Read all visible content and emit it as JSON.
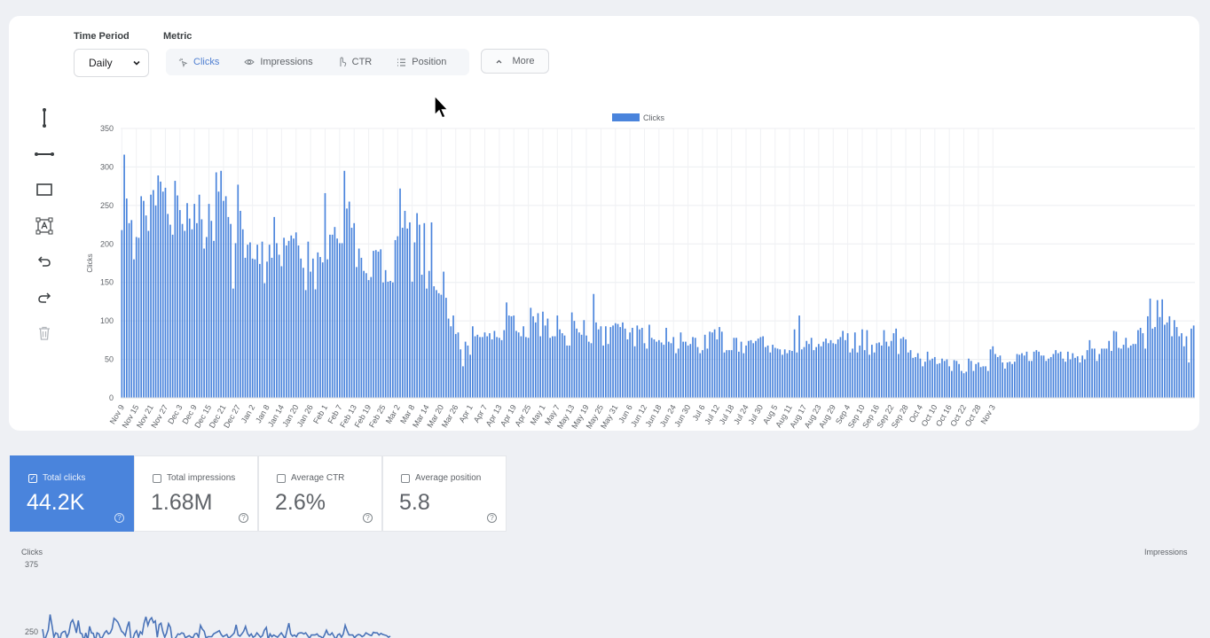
{
  "filters": {
    "time_period_label": "Time Period",
    "time_period_value": "Daily",
    "metric_label": "Metric",
    "metrics": [
      {
        "label": "Clicks",
        "icon": "cursor-click-icon",
        "active": true
      },
      {
        "label": "Impressions",
        "icon": "eye-icon",
        "active": false
      },
      {
        "label": "CTR",
        "icon": "pointer-icon",
        "active": false
      },
      {
        "label": "Position",
        "icon": "list-icon",
        "active": false
      }
    ],
    "more_label": "More"
  },
  "toolbar": {
    "tools": [
      "vertical-line-icon",
      "horizontal-line-icon",
      "rectangle-icon",
      "text-box-icon",
      "undo-icon",
      "redo-icon",
      "trash-icon"
    ]
  },
  "chart_data": {
    "type": "bar",
    "title": "",
    "legend": [
      "Clicks"
    ],
    "legend_position": "top-center",
    "ylabel": "Clicks",
    "xlabel": "",
    "ylim": [
      0,
      350
    ],
    "y_ticks": [
      0,
      50,
      100,
      150,
      200,
      250,
      300,
      350
    ],
    "grid": true,
    "color": "#4a84dc",
    "x_tick_labels": [
      "Nov 9",
      "Nov 15",
      "Nov 21",
      "Nov 27",
      "Dec 3",
      "Dec 9",
      "Dec 15",
      "Dec 21",
      "Dec 27",
      "Jan 2",
      "Jan 8",
      "Jan 14",
      "Jan 20",
      "Jan 26",
      "Feb 1",
      "Feb 7",
      "Feb 13",
      "Feb 19",
      "Feb 25",
      "Mar 2",
      "Mar 8",
      "Mar 14",
      "Mar 20",
      "Mar 26",
      "Apr 1",
      "Apr 7",
      "Apr 13",
      "Apr 19",
      "Apr 25",
      "May 1",
      "May 7",
      "May 13",
      "May 19",
      "May 25",
      "May 31",
      "Jun 6",
      "Jun 12",
      "Jun 18",
      "Jun 24",
      "Jun 30",
      "Jul 6",
      "Jul 12",
      "Jul 18",
      "Jul 24",
      "Jul 30",
      "Aug 5",
      "Aug 11",
      "Aug 17",
      "Aug 23",
      "Aug 29",
      "Sep 4",
      "Sep 10",
      "Sep 16",
      "Sep 22",
      "Sep 28",
      "Oct 4",
      "Oct 10",
      "Oct 16",
      "Oct 22",
      "Oct 28",
      "Nov 3"
    ],
    "series": [
      {
        "name": "Clicks",
        "values": [
          218,
          316,
          259,
          227,
          231,
          180,
          209,
          208,
          262,
          256,
          237,
          217,
          264,
          270,
          250,
          289,
          281,
          268,
          273,
          239,
          225,
          212,
          282,
          263,
          244,
          226,
          217,
          253,
          233,
          219,
          252,
          227,
          264,
          232,
          194,
          209,
          252,
          230,
          204,
          293,
          268,
          295,
          256,
          262,
          235,
          226,
          142,
          201,
          277,
          243,
          219,
          182,
          199,
          202,
          181,
          180,
          199,
          174,
          203,
          149,
          177,
          199,
          182,
          235,
          201,
          186,
          171,
          208,
          198,
          204,
          211,
          207,
          215,
          198,
          181,
          169,
          140,
          203,
          164,
          181,
          141,
          189,
          183,
          176,
          266,
          180,
          212,
          212,
          222,
          207,
          201,
          201,
          295,
          246,
          255,
          221,
          227,
          170,
          194,
          182,
          165,
          162,
          153,
          157,
          191,
          192,
          190,
          193,
          150,
          166,
          151,
          152,
          150,
          205,
          210,
          272,
          221,
          243,
          220,
          228,
          151,
          202,
          240,
          225,
          160,
          227,
          142,
          165,
          228,
          145,
          140,
          136,
          134,
          164,
          130,
          103,
          93,
          107,
          83,
          85,
          63,
          41,
          73,
          68,
          56,
          93,
          80,
          82,
          79,
          79,
          85,
          80,
          84,
          76,
          87,
          79,
          78,
          75,
          88,
          124,
          107,
          106,
          107,
          87,
          85,
          80,
          93,
          79,
          78,
          117,
          106,
          98,
          110,
          80,
          112,
          94,
          103,
          78,
          80,
          80,
          107,
          89,
          84,
          81,
          68,
          68,
          111,
          100,
          90,
          85,
          82,
          101,
          81,
          73,
          71,
          135,
          98,
          89,
          93,
          68,
          93,
          70,
          92,
          94,
          97,
          96,
          92,
          98,
          90,
          76,
          85,
          91,
          67,
          94,
          89,
          91,
          71,
          64,
          95,
          78,
          76,
          73,
          75,
          72,
          69,
          91,
          73,
          71,
          79,
          58,
          64,
          85,
          73,
          73,
          68,
          70,
          79,
          78,
          66,
          58,
          62,
          82,
          64,
          86,
          85,
          89,
          76,
          92,
          86,
          59,
          62,
          62,
          62,
          78,
          78,
          60,
          73,
          58,
          68,
          74,
          75,
          71,
          74,
          77,
          79,
          80,
          66,
          68,
          59,
          69,
          65,
          64,
          63,
          56,
          63,
          58,
          62,
          61,
          89,
          59,
          107,
          63,
          66,
          74,
          70,
          78,
          62,
          66,
          70,
          67,
          73,
          77,
          71,
          75,
          71,
          70,
          76,
          79,
          87,
          75,
          84,
          59,
          64,
          85,
          59,
          68,
          89,
          62,
          88,
          56,
          69,
          59,
          71,
          72,
          68,
          88,
          73,
          67,
          74,
          84,
          90,
          57,
          77,
          79,
          76,
          59,
          62,
          52,
          53,
          58,
          51,
          41,
          47,
          60,
          49,
          51,
          53,
          44,
          45,
          51,
          48,
          50,
          41,
          35,
          49,
          48,
          44,
          35,
          32,
          34,
          51,
          48,
          35,
          44,
          46,
          40,
          41,
          41,
          35,
          63,
          67,
          57,
          53,
          55,
          46,
          38,
          46,
          47,
          44,
          47,
          57,
          56,
          58,
          55,
          60,
          48,
          48,
          60,
          62,
          60,
          55,
          55,
          48,
          51,
          53,
          57,
          62,
          58,
          60,
          51,
          47,
          60,
          50,
          58,
          52,
          54,
          46,
          55,
          50,
          62,
          75,
          64,
          64,
          48,
          57,
          64,
          64,
          64,
          74,
          61,
          87,
          86,
          65,
          64,
          69,
          78,
          65,
          68,
          70,
          70,
          88,
          91,
          84,
          64,
          106,
          129,
          90,
          92,
          127,
          105,
          128,
          95,
          98,
          106,
          80,
          101,
          92,
          80,
          84,
          67,
          80,
          46,
          90,
          94
        ]
      }
    ]
  },
  "kpis": [
    {
      "label": "Total clicks",
      "value": "44.2K",
      "checked": true
    },
    {
      "label": "Total impressions",
      "value": "1.68M",
      "checked": false
    },
    {
      "label": "Average CTR",
      "value": "2.6%",
      "checked": false
    },
    {
      "label": "Average position",
      "value": "5.8",
      "checked": false
    }
  ],
  "bottom_chart": {
    "left_axis_label": "Clicks",
    "right_axis_label": "Impressions",
    "y_ticks": [
      "375",
      "250"
    ],
    "color": "#4a73b8",
    "values": [
      255,
      233,
      243,
      253,
      282,
      262,
      240,
      248,
      246,
      232,
      247,
      250,
      251,
      240,
      248,
      267,
      272,
      262,
      248,
      271,
      248,
      246,
      233,
      248,
      235,
      260,
      248,
      247,
      233,
      248,
      246,
      236,
      241,
      248,
      252,
      246,
      248,
      256,
      275,
      272,
      268,
      260,
      251,
      248,
      243,
      259,
      269,
      237,
      236,
      247,
      252,
      240,
      250,
      246,
      266,
      278,
      262,
      272,
      276,
      267,
      270,
      240,
      263,
      266,
      250,
      240,
      248,
      265,
      258,
      233,
      235,
      240,
      246,
      245,
      248,
      247,
      239,
      241,
      243,
      240,
      239,
      246,
      247,
      240,
      262,
      255,
      251,
      238,
      241,
      241,
      241,
      246,
      248,
      250,
      252,
      245,
      241,
      243,
      245,
      238,
      241,
      244,
      248,
      263,
      244,
      242,
      246,
      251,
      260,
      247,
      242,
      246,
      240,
      242,
      248,
      244,
      240,
      243,
      253,
      258,
      236,
      246,
      241,
      244,
      242,
      240,
      244,
      248,
      243,
      237,
      252,
      266,
      246,
      242,
      244,
      241,
      247,
      248,
      248,
      246,
      248,
      243,
      238,
      244,
      244,
      244,
      246,
      242,
      241,
      238,
      244,
      253,
      245,
      244,
      248,
      242,
      236,
      244,
      246,
      240,
      246,
      262,
      252,
      244,
      244,
      244,
      239,
      243,
      245,
      244,
      241,
      243,
      248,
      246,
      244,
      243,
      249,
      248,
      248,
      244,
      247,
      245,
      244,
      243,
      240,
      242
    ]
  }
}
